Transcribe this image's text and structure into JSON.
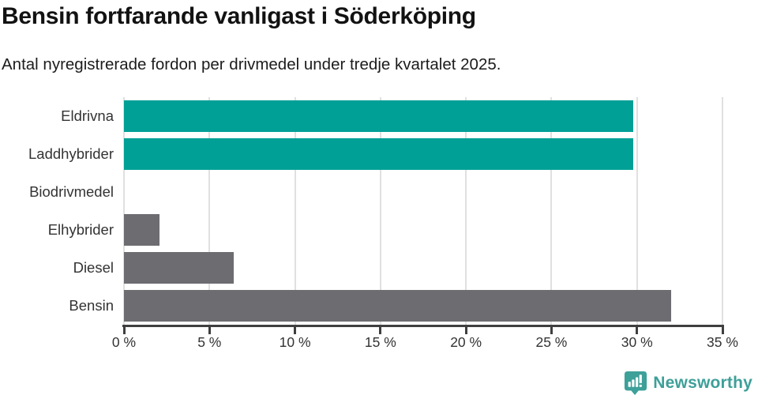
{
  "chart_data": {
    "type": "bar",
    "orientation": "horizontal",
    "title": "Bensin fortfarande vanligast i Söderköping",
    "subtitle": "Antal nyregistrerade fordon per drivmedel under tredje kvartalet 2025.",
    "categories": [
      "Eldrivna",
      "Laddhybrider",
      "Biodrivmedel",
      "Elhybrider",
      "Diesel",
      "Bensin"
    ],
    "values": [
      29.8,
      29.8,
      0,
      2.1,
      6.4,
      32.0
    ],
    "bar_colors": [
      "#00a096",
      "#00a096",
      "#6c6c71",
      "#6c6c71",
      "#6c6c71",
      "#6c6c71"
    ],
    "xlim": [
      0,
      35
    ],
    "x_ticks": [
      0,
      5,
      10,
      15,
      20,
      25,
      30,
      35
    ],
    "x_tick_labels": [
      "0 %",
      "5 %",
      "10 %",
      "15 %",
      "20 %",
      "25 %",
      "30 %",
      "35 %"
    ],
    "grid": "vertical",
    "gridline_color": "#e0e0e0",
    "axis_color": "#3f3f3f",
    "label_color": "#333333",
    "accent_color": "#00a096",
    "neutral_color": "#6c6c71",
    "legend": "none"
  },
  "footer": {
    "logo_text": "Newsworthy",
    "logo_color": "#3da099"
  }
}
